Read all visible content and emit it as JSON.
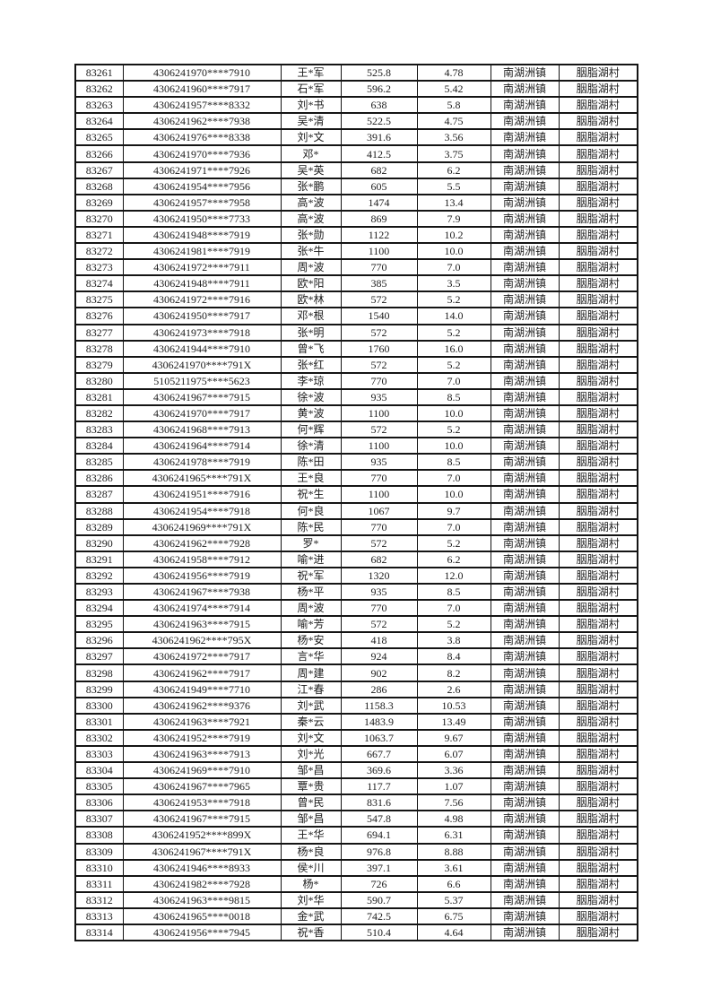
{
  "page": {
    "background_color": "#ffffff",
    "text_color": "#1c1c1c",
    "border_color": "#141414"
  },
  "table": {
    "column_names": [
      "cell-seq",
      "cell-id-number",
      "cell-name",
      "cell-amount",
      "cell-rate",
      "cell-town",
      "cell-village"
    ],
    "rows": [
      [
        "83261",
        "4306241970****7910",
        "王*军",
        "525.8",
        "4.78",
        "南湖洲镇",
        "胭脂湖村"
      ],
      [
        "83262",
        "4306241960****7917",
        "石*军",
        "596.2",
        "5.42",
        "南湖洲镇",
        "胭脂湖村"
      ],
      [
        "83263",
        "4306241957****8332",
        "刘*书",
        "638",
        "5.8",
        "南湖洲镇",
        "胭脂湖村"
      ],
      [
        "83264",
        "4306241962****7938",
        "吴*清",
        "522.5",
        "4.75",
        "南湖洲镇",
        "胭脂湖村"
      ],
      [
        "83265",
        "4306241976****8338",
        "刘*文",
        "391.6",
        "3.56",
        "南湖洲镇",
        "胭脂湖村"
      ],
      [
        "83266",
        "4306241970****7936",
        "邓*",
        "412.5",
        "3.75",
        "南湖洲镇",
        "胭脂湖村"
      ],
      [
        "83267",
        "4306241971****7926",
        "吴*英",
        "682",
        "6.2",
        "南湖洲镇",
        "胭脂湖村"
      ],
      [
        "83268",
        "4306241954****7956",
        "张*鹏",
        "605",
        "5.5",
        "南湖洲镇",
        "胭脂湖村"
      ],
      [
        "83269",
        "4306241957****7958",
        "高*波",
        "1474",
        "13.4",
        "南湖洲镇",
        "胭脂湖村"
      ],
      [
        "83270",
        "4306241950****7733",
        "高*波",
        "869",
        "7.9",
        "南湖洲镇",
        "胭脂湖村"
      ],
      [
        "83271",
        "4306241948****7919",
        "张*勋",
        "1122",
        "10.2",
        "南湖洲镇",
        "胭脂湖村"
      ],
      [
        "83272",
        "4306241981****7919",
        "张*牛",
        "1100",
        "10.0",
        "南湖洲镇",
        "胭脂湖村"
      ],
      [
        "83273",
        "4306241972****7911",
        "周*波",
        "770",
        "7.0",
        "南湖洲镇",
        "胭脂湖村"
      ],
      [
        "83274",
        "4306241948****7911",
        "欧*阳",
        "385",
        "3.5",
        "南湖洲镇",
        "胭脂湖村"
      ],
      [
        "83275",
        "4306241972****7916",
        "欧*林",
        "572",
        "5.2",
        "南湖洲镇",
        "胭脂湖村"
      ],
      [
        "83276",
        "4306241950****7917",
        "邓*根",
        "1540",
        "14.0",
        "南湖洲镇",
        "胭脂湖村"
      ],
      [
        "83277",
        "4306241973****7918",
        "张*明",
        "572",
        "5.2",
        "南湖洲镇",
        "胭脂湖村"
      ],
      [
        "83278",
        "4306241944****7910",
        "曾*飞",
        "1760",
        "16.0",
        "南湖洲镇",
        "胭脂湖村"
      ],
      [
        "83279",
        "4306241970****791X",
        "张*红",
        "572",
        "5.2",
        "南湖洲镇",
        "胭脂湖村"
      ],
      [
        "83280",
        "5105211975****5623",
        "李*琼",
        "770",
        "7.0",
        "南湖洲镇",
        "胭脂湖村"
      ],
      [
        "83281",
        "4306241967****7915",
        "徐*波",
        "935",
        "8.5",
        "南湖洲镇",
        "胭脂湖村"
      ],
      [
        "83282",
        "4306241970****7917",
        "黄*波",
        "1100",
        "10.0",
        "南湖洲镇",
        "胭脂湖村"
      ],
      [
        "83283",
        "4306241968****7913",
        "何*辉",
        "572",
        "5.2",
        "南湖洲镇",
        "胭脂湖村"
      ],
      [
        "83284",
        "4306241964****7914",
        "徐*清",
        "1100",
        "10.0",
        "南湖洲镇",
        "胭脂湖村"
      ],
      [
        "83285",
        "4306241978****7919",
        "陈*田",
        "935",
        "8.5",
        "南湖洲镇",
        "胭脂湖村"
      ],
      [
        "83286",
        "4306241965****791X",
        "王*良",
        "770",
        "7.0",
        "南湖洲镇",
        "胭脂湖村"
      ],
      [
        "83287",
        "4306241951****7916",
        "祝*生",
        "1100",
        "10.0",
        "南湖洲镇",
        "胭脂湖村"
      ],
      [
        "83288",
        "4306241954****7918",
        "何*良",
        "1067",
        "9.7",
        "南湖洲镇",
        "胭脂湖村"
      ],
      [
        "83289",
        "4306241969****791X",
        "陈*民",
        "770",
        "7.0",
        "南湖洲镇",
        "胭脂湖村"
      ],
      [
        "83290",
        "4306241962****7928",
        "罗*",
        "572",
        "5.2",
        "南湖洲镇",
        "胭脂湖村"
      ],
      [
        "83291",
        "4306241958****7912",
        "喻*进",
        "682",
        "6.2",
        "南湖洲镇",
        "胭脂湖村"
      ],
      [
        "83292",
        "4306241956****7919",
        "祝*军",
        "1320",
        "12.0",
        "南湖洲镇",
        "胭脂湖村"
      ],
      [
        "83293",
        "4306241967****7938",
        "杨*平",
        "935",
        "8.5",
        "南湖洲镇",
        "胭脂湖村"
      ],
      [
        "83294",
        "4306241974****7914",
        "周*波",
        "770",
        "7.0",
        "南湖洲镇",
        "胭脂湖村"
      ],
      [
        "83295",
        "4306241963****7915",
        "喻*芳",
        "572",
        "5.2",
        "南湖洲镇",
        "胭脂湖村"
      ],
      [
        "83296",
        "4306241962****795X",
        "杨*安",
        "418",
        "3.8",
        "南湖洲镇",
        "胭脂湖村"
      ],
      [
        "83297",
        "4306241972****7917",
        "言*华",
        "924",
        "8.4",
        "南湖洲镇",
        "胭脂湖村"
      ],
      [
        "83298",
        "4306241962****7917",
        "周*建",
        "902",
        "8.2",
        "南湖洲镇",
        "胭脂湖村"
      ],
      [
        "83299",
        "4306241949****7710",
        "江*春",
        "286",
        "2.6",
        "南湖洲镇",
        "胭脂湖村"
      ],
      [
        "83300",
        "4306241962****9376",
        "刘*武",
        "1158.3",
        "10.53",
        "南湖洲镇",
        "胭脂湖村"
      ],
      [
        "83301",
        "4306241963****7921",
        "秦*云",
        "1483.9",
        "13.49",
        "南湖洲镇",
        "胭脂湖村"
      ],
      [
        "83302",
        "4306241952****7919",
        "刘*文",
        "1063.7",
        "9.67",
        "南湖洲镇",
        "胭脂湖村"
      ],
      [
        "83303",
        "4306241963****7913",
        "刘*光",
        "667.7",
        "6.07",
        "南湖洲镇",
        "胭脂湖村"
      ],
      [
        "83304",
        "4306241969****7910",
        "邹*昌",
        "369.6",
        "3.36",
        "南湖洲镇",
        "胭脂湖村"
      ],
      [
        "83305",
        "4306241967****7965",
        "覃*贵",
        "117.7",
        "1.07",
        "南湖洲镇",
        "胭脂湖村"
      ],
      [
        "83306",
        "4306241953****7918",
        "曾*民",
        "831.6",
        "7.56",
        "南湖洲镇",
        "胭脂湖村"
      ],
      [
        "83307",
        "4306241967****7915",
        "邹*昌",
        "547.8",
        "4.98",
        "南湖洲镇",
        "胭脂湖村"
      ],
      [
        "83308",
        "4306241952****899X",
        "王*华",
        "694.1",
        "6.31",
        "南湖洲镇",
        "胭脂湖村"
      ],
      [
        "83309",
        "4306241967****791X",
        "杨*良",
        "976.8",
        "8.88",
        "南湖洲镇",
        "胭脂湖村"
      ],
      [
        "83310",
        "4306241946****8933",
        "侯*川",
        "397.1",
        "3.61",
        "南湖洲镇",
        "胭脂湖村"
      ],
      [
        "83311",
        "4306241982****7928",
        "杨*",
        "726",
        "6.6",
        "南湖洲镇",
        "胭脂湖村"
      ],
      [
        "83312",
        "4306241963****9815",
        "刘*华",
        "590.7",
        "5.37",
        "南湖洲镇",
        "胭脂湖村"
      ],
      [
        "83313",
        "4306241965****0018",
        "金*武",
        "742.5",
        "6.75",
        "南湖洲镇",
        "胭脂湖村"
      ],
      [
        "83314",
        "4306241956****7945",
        "祝*香",
        "510.4",
        "4.64",
        "南湖洲镇",
        "胭脂湖村"
      ]
    ]
  }
}
